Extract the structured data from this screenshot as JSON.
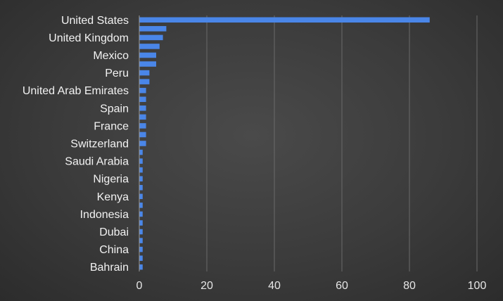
{
  "chart_data": {
    "type": "bar",
    "orientation": "horizontal",
    "title": "",
    "xlabel": "",
    "ylabel": "",
    "xlim": [
      0,
      100
    ],
    "x_ticks": [
      0,
      20,
      40,
      60,
      80,
      100
    ],
    "grid": true,
    "bar_color": "#4a86e8",
    "categories": [
      "United States",
      "",
      "United Kingdom",
      "",
      "Mexico",
      "",
      "Peru",
      "",
      "United Arab Emirates",
      "",
      "Spain",
      "",
      "France",
      "",
      "Switzerland",
      "",
      "Saudi Arabia",
      "",
      "Nigeria",
      "",
      "Kenya",
      "",
      "Indonesia",
      "",
      "Dubai",
      "",
      "China",
      "",
      "Bahrain"
    ],
    "values": [
      86,
      8,
      7,
      6,
      5,
      5,
      3,
      3,
      2,
      2,
      2,
      2,
      2,
      2,
      2,
      1,
      1,
      1,
      1,
      1,
      1,
      1,
      1,
      1,
      1,
      1,
      1,
      1,
      1
    ]
  }
}
